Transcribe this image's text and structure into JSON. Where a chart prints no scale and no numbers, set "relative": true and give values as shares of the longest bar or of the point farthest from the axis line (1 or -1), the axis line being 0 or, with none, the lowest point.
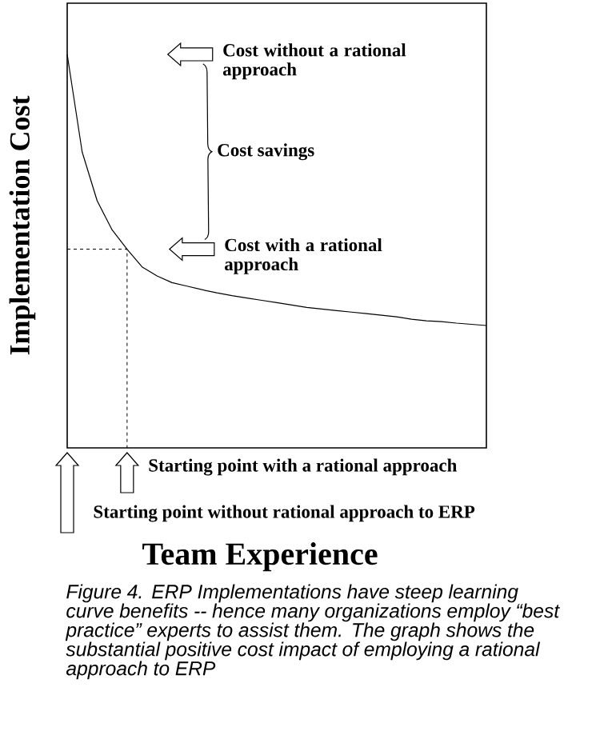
{
  "chart_data": {
    "type": "line",
    "relative": true,
    "xlabel": "Team Experience",
    "ylabel": "Implementation Cost",
    "categories": [
      null,
      null,
      null,
      null,
      null,
      null,
      null,
      null,
      null,
      null,
      null,
      null,
      null,
      null,
      null,
      null,
      null,
      null,
      null,
      null,
      null,
      null,
      null,
      null,
      null,
      null,
      null,
      null,
      null
    ],
    "values": [
      1,
      0.752,
      0.628,
      0.554,
      0.505,
      0.46,
      0.437,
      0.42,
      0.411,
      0.402,
      0.394,
      0.387,
      0.381,
      0.375,
      0.369,
      0.363,
      0.357,
      0.353,
      0.349,
      0.345,
      0.341,
      0.337,
      0.333,
      0.327,
      0.323,
      0.321,
      0.317,
      0.314,
      0.311
    ],
    "color": "#000000",
    "line_style": "solid",
    "ref_lines": [
      {
        "axis": "y",
        "value": 0.505,
        "line_style": "dotted",
        "color": "#000000"
      }
    ],
    "annotations": [
      "Cost without a rational approach",
      "Cost savings",
      "Cost with a rational approach",
      "Starting point with a rational approach",
      "Starting point without rational approach to ERP",
      "Figure 4. ERP Implementations have steep learning curve benefits -- hence many organizations employ “best practice” experts to assist them. The graph shows the substantial positive cost impact of employing a rational approach to ERP"
    ]
  }
}
